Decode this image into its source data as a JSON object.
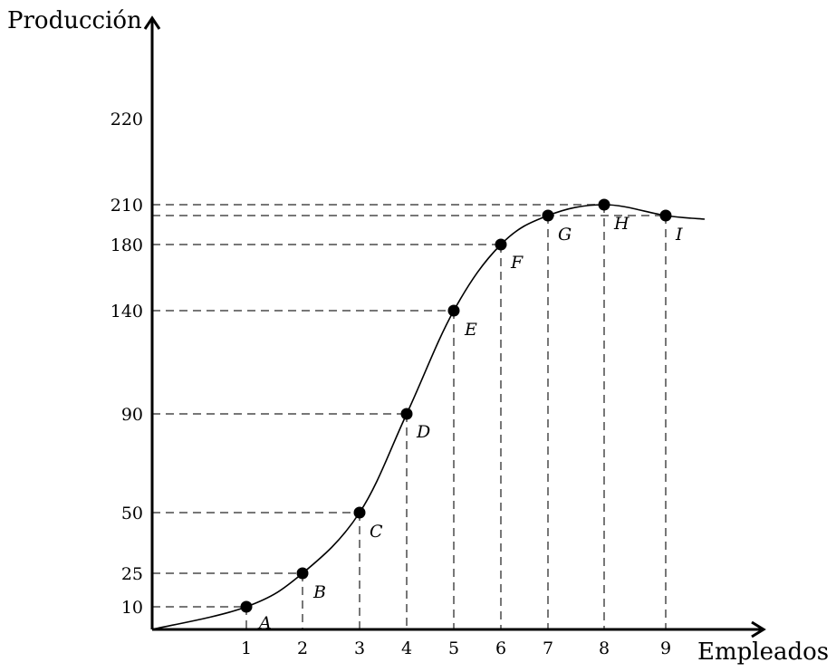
{
  "chart_data": {
    "type": "line",
    "xlabel": "Empleados",
    "ylabel": "Producción",
    "x_ticks": [
      1,
      2,
      3,
      4,
      5,
      6,
      7,
      8,
      9
    ],
    "y_ticks": [
      10,
      25,
      50,
      90,
      140,
      180,
      210,
      220
    ],
    "xlim": [
      0,
      9.6
    ],
    "ylim": [
      0,
      240
    ],
    "grid": false,
    "series": [
      {
        "values": [
          {
            "x": 1,
            "y": 10,
            "label": "A"
          },
          {
            "x": 2,
            "y": 25,
            "label": "B"
          },
          {
            "x": 3,
            "y": 50,
            "label": "C"
          },
          {
            "x": 4,
            "y": 90,
            "label": "D"
          },
          {
            "x": 5,
            "y": 140,
            "label": "E"
          },
          {
            "x": 6,
            "y": 180,
            "label": "F"
          },
          {
            "x": 7,
            "y": 205,
            "label": "G"
          },
          {
            "x": 8,
            "y": 210,
            "label": "H"
          },
          {
            "x": 9,
            "y": 205,
            "label": "I"
          }
        ]
      }
    ]
  }
}
